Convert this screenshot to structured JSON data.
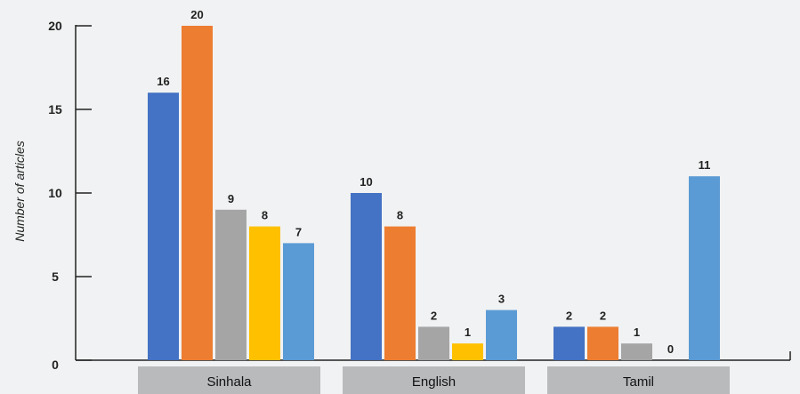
{
  "chart_data": {
    "type": "bar",
    "ylabel": "Number of articles",
    "xlabel": "",
    "categories": [
      "Sinhala",
      "English",
      "Tamil"
    ],
    "yticks": [
      0,
      5,
      10,
      15,
      20
    ],
    "ylim": [
      0,
      20
    ],
    "grid": false,
    "legend": "none",
    "series": [
      {
        "color": "#4472c4",
        "values": [
          16,
          10,
          2
        ]
      },
      {
        "color": "#ed7d31",
        "values": [
          20,
          8,
          2
        ]
      },
      {
        "color": "#a5a5a5",
        "values": [
          9,
          2,
          1
        ]
      },
      {
        "color": "#ffc000",
        "values": [
          8,
          1,
          0
        ]
      },
      {
        "color": "#5b9bd5",
        "values": [
          7,
          3,
          11
        ]
      }
    ]
  }
}
